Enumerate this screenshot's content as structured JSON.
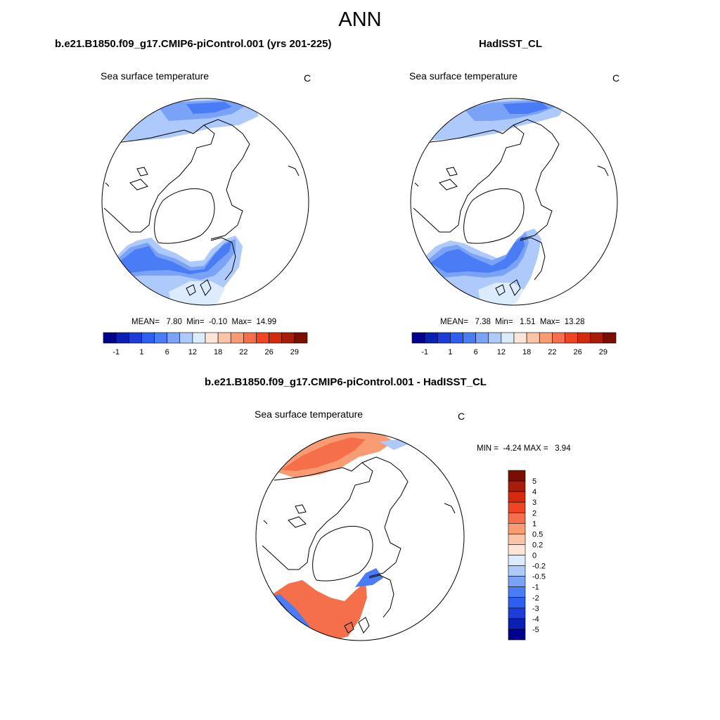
{
  "page": {
    "title": "ANN"
  },
  "colors": {
    "sst_scale": [
      "#00008c",
      "#0a1fb4",
      "#1e3cd7",
      "#2d5ff0",
      "#4a7df5",
      "#7aa3f8",
      "#aec9fb",
      "#dcebfd",
      "#fde6d8",
      "#fcc4a6",
      "#f99b73",
      "#f5704a",
      "#ef4523",
      "#d42b0f",
      "#a91d07",
      "#7a0e00"
    ],
    "diff_scale": [
      "#00008c",
      "#0a1fb4",
      "#1e3cd7",
      "#2d5ff0",
      "#4a7df5",
      "#7aa3f8",
      "#aec9fb",
      "#dcebfd",
      "#fde6d8",
      "#fcc4a6",
      "#f99b73",
      "#f5704a",
      "#ef4523",
      "#d42b0f",
      "#a91d07",
      "#7a0e00"
    ]
  },
  "panels": {
    "model": {
      "title": "b.e21.B1850.f09_g17.CMIP6-piControl.001 (yrs 201-225)",
      "variable": "Sea surface temperature",
      "units": "C",
      "stats": "MEAN=   7.80  Min=  -0.10  Max=  14.99",
      "colorbar_labels": [
        "-1",
        "1",
        "6",
        "12",
        "18",
        "22",
        "26",
        "29"
      ]
    },
    "obs": {
      "title": "HadISST_CL",
      "variable": "Sea surface temperature",
      "units": "C",
      "stats": "MEAN=   7.38  Min=   1.51  Max=  13.28",
      "colorbar_labels": [
        "-1",
        "1",
        "6",
        "12",
        "18",
        "22",
        "26",
        "29"
      ]
    },
    "diff": {
      "title": "b.e21.B1850.f09_g17.CMIP6-piControl.001 - HadISST_CL",
      "variable": "Sea surface temperature",
      "units": "C",
      "stats": "MIN =  -4.24 MAX =   3.94",
      "colorbar_labels": [
        "5",
        "4",
        "3",
        "2",
        "1",
        "0.5",
        "0.2",
        "0",
        "-0.2",
        "-0.5",
        "-1",
        "-2",
        "-3",
        "-4",
        "-5"
      ]
    }
  }
}
